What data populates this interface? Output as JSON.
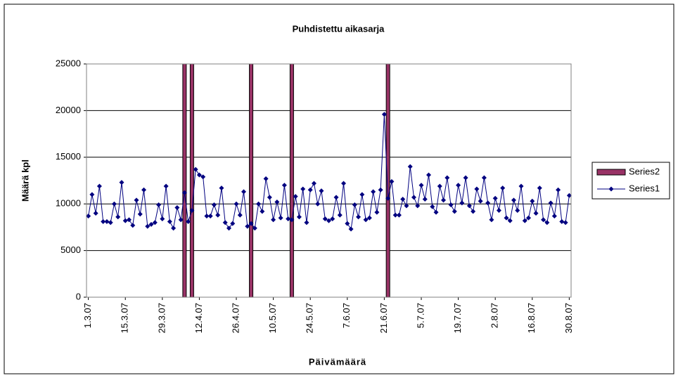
{
  "chart_data": {
    "type": "line",
    "title": "Puhdistettu aikasarja",
    "x_label": "Päivämäärä",
    "y_label": "Määrä kpl",
    "categories": [
      "1.3.07",
      null,
      null,
      null,
      null,
      null,
      null,
      null,
      null,
      null,
      "15.3.07",
      null,
      null,
      null,
      null,
      null,
      null,
      null,
      null,
      null,
      "29.3.07",
      null,
      null,
      null,
      null,
      null,
      null,
      null,
      null,
      null,
      "12.4.07",
      null,
      null,
      null,
      null,
      null,
      null,
      null,
      null,
      null,
      "26.4.07",
      null,
      null,
      null,
      null,
      null,
      null,
      null,
      null,
      null,
      "10.5.07",
      null,
      null,
      null,
      null,
      null,
      null,
      null,
      null,
      null,
      "24.5.07",
      null,
      null,
      null,
      null,
      null,
      null,
      null,
      null,
      null,
      "7.6.07",
      null,
      null,
      null,
      null,
      null,
      null,
      null,
      null,
      null,
      "21.6.07",
      null,
      null,
      null,
      null,
      null,
      null,
      null,
      null,
      null,
      "5.7.07",
      null,
      null,
      null,
      null,
      null,
      null,
      null,
      null,
      null,
      "19.7.07",
      null,
      null,
      null,
      null,
      null,
      null,
      null,
      null,
      null,
      "2.8.07",
      null,
      null,
      null,
      null,
      null,
      null,
      null,
      null,
      null,
      "16.8.07",
      null,
      null,
      null,
      null,
      null,
      null,
      null,
      null,
      null,
      "30.8.07"
    ],
    "series": [
      {
        "name": "Series1",
        "type": "line",
        "color": "#000080",
        "values": [
          8700,
          11000,
          9000,
          11900,
          8100,
          8100,
          8000,
          10000,
          8600,
          12300,
          8200,
          8300,
          7700,
          10400,
          8900,
          11500,
          7600,
          7800,
          8000,
          9900,
          8400,
          11900,
          8100,
          7400,
          9600,
          8300,
          11200,
          8100,
          9300,
          13700,
          13100,
          12900,
          8700,
          8700,
          9900,
          8800,
          11700,
          8000,
          7400,
          7900,
          10000,
          8800,
          11300,
          7600,
          7900,
          7400,
          10000,
          9200,
          12700,
          10700,
          8300,
          10200,
          8500,
          12000,
          8400,
          8300,
          10800,
          8600,
          11600,
          8000,
          11500,
          12200,
          10000,
          11400,
          8400,
          8200,
          8400,
          10700,
          8800,
          12200,
          7900,
          7300,
          9900,
          8600,
          11000,
          8300,
          8500,
          11300,
          9100,
          11500,
          19600,
          10600,
          12400,
          8800,
          8800,
          10500,
          9800,
          14000,
          10700,
          9800,
          12000,
          10500,
          13100,
          9700,
          9100,
          11900,
          10400,
          12800,
          9900,
          9200,
          12000,
          10100,
          12800,
          9800,
          9200,
          11600,
          10300,
          12800,
          10100,
          8300,
          10600,
          9300,
          11700,
          8500,
          8200,
          10400,
          9300,
          11900,
          8200,
          8500,
          10300,
          9000,
          11700,
          8300,
          8000,
          10100,
          8700,
          11500,
          8100,
          8000,
          10900
        ]
      },
      {
        "name": "Series2",
        "type": "bar",
        "color": "#993366",
        "values": [
          null,
          null,
          null,
          null,
          null,
          null,
          null,
          null,
          null,
          null,
          null,
          null,
          null,
          null,
          null,
          null,
          null,
          null,
          null,
          null,
          null,
          null,
          null,
          null,
          null,
          null,
          25000,
          null,
          25000,
          null,
          null,
          null,
          null,
          null,
          null,
          null,
          null,
          null,
          null,
          null,
          null,
          null,
          null,
          null,
          25000,
          null,
          null,
          null,
          null,
          null,
          null,
          null,
          null,
          null,
          null,
          25000,
          null,
          null,
          null,
          null,
          null,
          null,
          null,
          null,
          null,
          null,
          null,
          null,
          null,
          null,
          null,
          null,
          null,
          null,
          null,
          null,
          null,
          null,
          null,
          null,
          null,
          25000,
          null,
          null,
          null,
          null,
          null,
          null,
          null,
          null,
          null,
          null,
          null,
          null,
          null,
          null,
          null,
          null,
          null,
          null,
          null,
          null,
          null,
          null,
          null,
          null,
          null,
          null,
          null,
          null,
          null,
          null,
          null,
          null,
          null,
          null,
          null,
          null,
          null,
          null,
          null,
          null,
          null,
          null,
          null,
          null,
          null,
          null,
          null,
          null,
          null
        ]
      }
    ],
    "ylim": [
      0,
      25000
    ],
    "yticks": [
      0,
      5000,
      10000,
      15000,
      20000,
      25000
    ],
    "grid": true,
    "legend": "right"
  }
}
